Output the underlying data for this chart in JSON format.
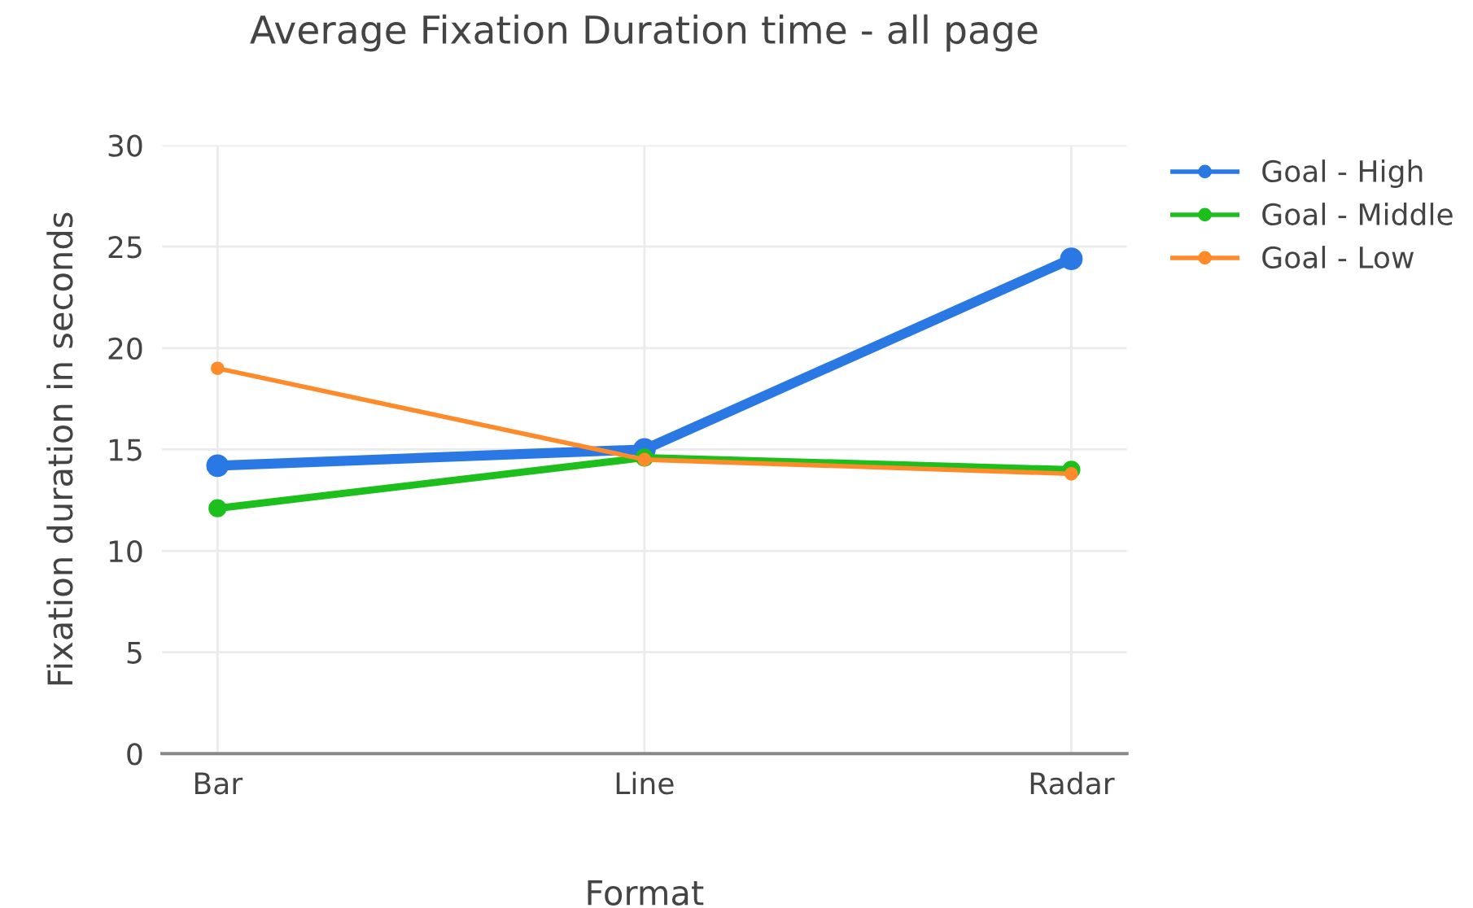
{
  "chart_data": {
    "type": "line",
    "title": "Average Fixation Duration time - all page",
    "xlabel": "Format",
    "ylabel": "Fixation duration in seconds",
    "categories": [
      "Bar",
      "Line",
      "Radar"
    ],
    "series": [
      {
        "name": "Goal - High",
        "color": "#2a78e4",
        "values": [
          14.2,
          15.0,
          24.4
        ]
      },
      {
        "name": "Goal - Middle",
        "color": "#1cbf1c",
        "values": [
          12.1,
          14.6,
          14.0
        ]
      },
      {
        "name": "Goal - Low",
        "color": "#ff8a2a",
        "values": [
          19.0,
          14.5,
          13.8
        ]
      }
    ],
    "ylim": [
      0,
      30
    ],
    "yticks": [
      0,
      5,
      10,
      15,
      20,
      25,
      30
    ],
    "grid": true,
    "legend": "top right",
    "marker": "circle",
    "line_style": "solid"
  }
}
